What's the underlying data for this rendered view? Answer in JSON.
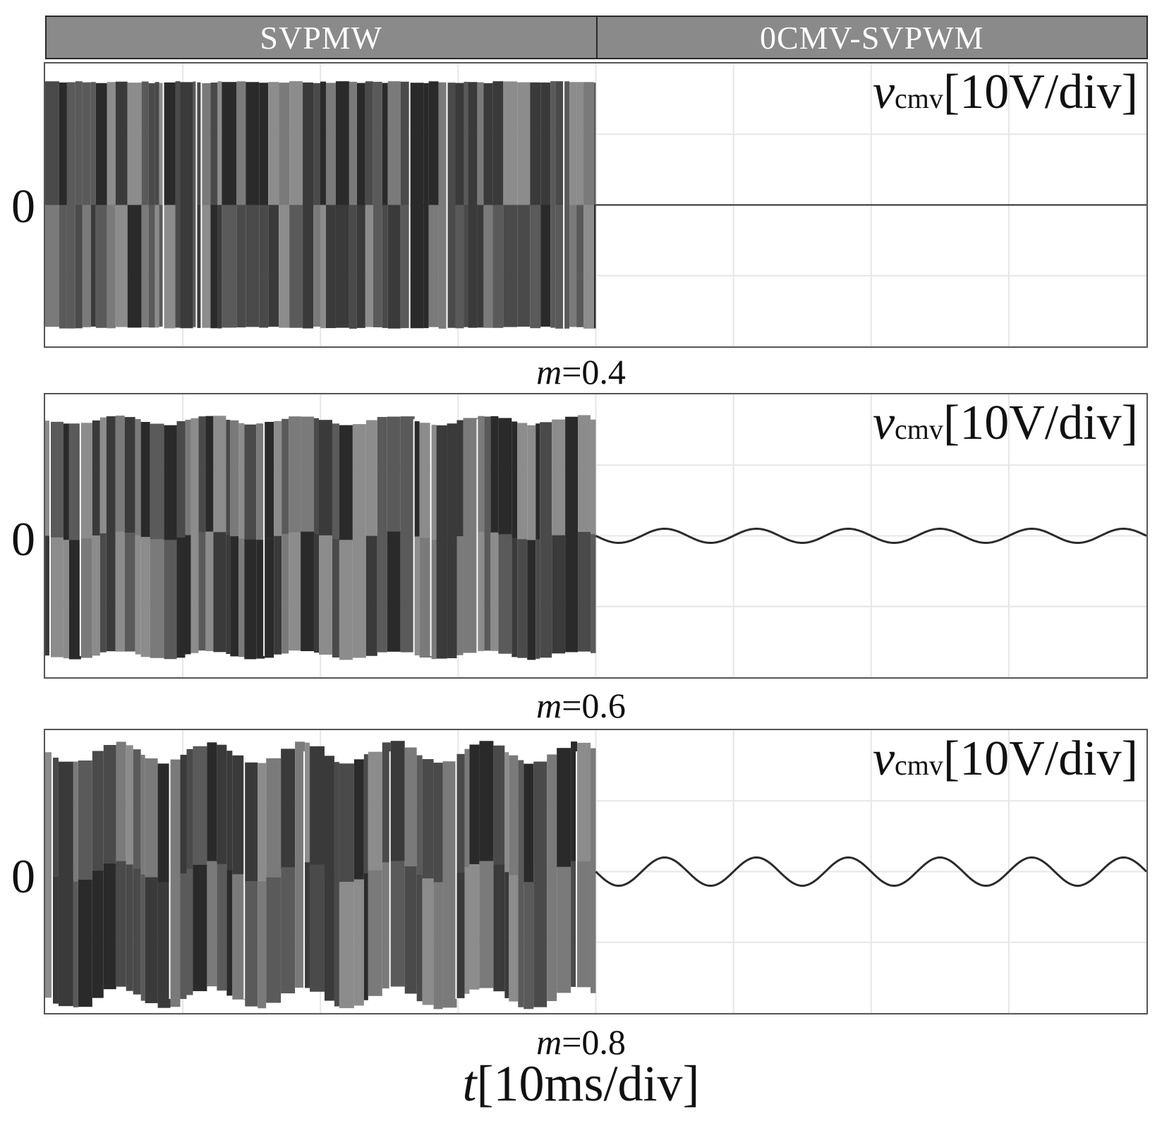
{
  "header": {
    "left": "SVPMW",
    "right": "0CMV-SVPWM"
  },
  "panels": [
    {
      "label_var": "v",
      "label_sub": "cmv",
      "label_scale": "[10V/div]",
      "zero": "0",
      "caption_var": "m",
      "caption_val": "=0.4"
    },
    {
      "label_var": "v",
      "label_sub": "cmv",
      "label_scale": "[10V/div]",
      "zero": "0",
      "caption_var": "m",
      "caption_val": "=0.6"
    },
    {
      "label_var": "v",
      "label_sub": "cmv",
      "label_scale": "[10V/div]",
      "zero": "0",
      "caption_var": "m",
      "caption_val": "=0.8"
    }
  ],
  "xlabel_var": "t",
  "xlabel_scale": "[10ms/div]",
  "chart_data": [
    {
      "type": "line",
      "modulation_index": 0.4,
      "grid": {
        "x_divisions": 8,
        "y_divisions": 4
      },
      "y_unit_per_div": 10,
      "x_unit_per_div": 10,
      "series": [
        {
          "method": "SVPWM",
          "x_range_div": [
            0,
            4
          ],
          "envelope_div": [
            -1.75,
            1.75
          ],
          "ripple_div": 0.0
        },
        {
          "method": "0CMV-SVPWM",
          "x_range_div": [
            4,
            8
          ],
          "amplitude_div": 0.02,
          "cycles": 0
        }
      ]
    },
    {
      "type": "line",
      "modulation_index": 0.6,
      "grid": {
        "x_divisions": 8,
        "y_divisions": 4
      },
      "y_unit_per_div": 10,
      "x_unit_per_div": 10,
      "series": [
        {
          "method": "SVPWM",
          "x_range_div": [
            0,
            4
          ],
          "envelope_div": [
            -1.7,
            1.65
          ],
          "ripple_div": 0.06
        },
        {
          "method": "0CMV-SVPWM",
          "x_range_div": [
            4,
            8
          ],
          "amplitude_div": 0.1,
          "cycles": 6
        }
      ]
    },
    {
      "type": "line",
      "modulation_index": 0.8,
      "grid": {
        "x_divisions": 8,
        "y_divisions": 4
      },
      "y_unit_per_div": 10,
      "x_unit_per_div": 10,
      "series": [
        {
          "method": "SVPWM",
          "x_range_div": [
            0,
            4
          ],
          "envelope_div": [
            -1.8,
            1.7
          ],
          "ripple_div": 0.15
        },
        {
          "method": "0CMV-SVPWM",
          "x_range_div": [
            4,
            8
          ],
          "amplitude_div": 0.2,
          "cycles": 6
        }
      ]
    }
  ]
}
